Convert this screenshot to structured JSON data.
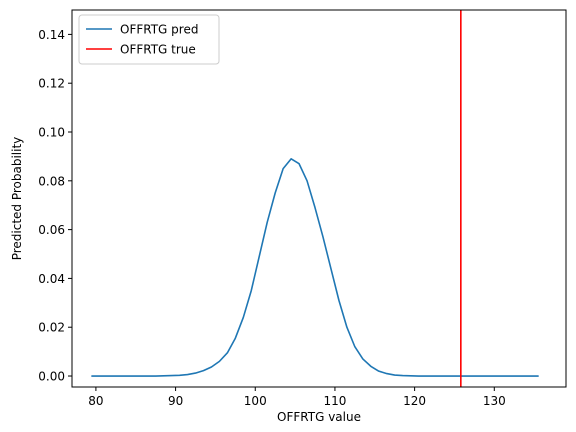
{
  "chart_data": {
    "type": "line",
    "xlabel": "OFFRTG value",
    "ylabel": "Predicted Probability",
    "xlim": [
      77,
      139
    ],
    "ylim": [
      -0.0045,
      0.15
    ],
    "xticks": [
      80,
      90,
      100,
      110,
      120,
      130
    ],
    "yticks": [
      0.0,
      0.02,
      0.04,
      0.06,
      0.08,
      0.1,
      0.12,
      0.14
    ],
    "ytick_labels": [
      "0.00",
      "0.02",
      "0.04",
      "0.06",
      "0.08",
      "0.10",
      "0.12",
      "0.14"
    ],
    "grid": false,
    "legend_position": "upper-left",
    "series": [
      {
        "name": "OFFRTG pred",
        "color": "#1f77b4",
        "x": [
          79.5,
          80.5,
          81.5,
          82.5,
          83.5,
          84.5,
          85.5,
          86.5,
          87.5,
          88.5,
          89.5,
          90.5,
          91.5,
          92.5,
          93.5,
          94.5,
          95.5,
          96.5,
          97.5,
          98.5,
          99.5,
          100.5,
          101.5,
          102.5,
          103.5,
          104.5,
          105.5,
          106.5,
          107.5,
          108.5,
          109.5,
          110.5,
          111.5,
          112.5,
          113.5,
          114.5,
          115.5,
          116.5,
          117.5,
          118.5,
          119.5,
          120.5,
          121.5,
          122.5,
          123.5,
          124.5,
          125.5,
          126.5,
          127.5,
          128.5,
          129.5,
          130.5,
          131.5,
          132.5,
          133.5,
          134.5,
          135.5
        ],
        "y": [
          0.0,
          0.0,
          0.0,
          0.0,
          0.0,
          0.0,
          0.0,
          0.0,
          0.0,
          0.0001,
          0.0002,
          0.0003,
          0.0006,
          0.0012,
          0.0022,
          0.0037,
          0.006,
          0.0095,
          0.0155,
          0.024,
          0.035,
          0.049,
          0.063,
          0.075,
          0.085,
          0.089,
          0.087,
          0.08,
          0.069,
          0.057,
          0.044,
          0.031,
          0.02,
          0.012,
          0.007,
          0.004,
          0.002,
          0.001,
          0.0004,
          0.0002,
          0.0001,
          0.0,
          0.0,
          0.0,
          0.0,
          0.0,
          0.0,
          0.0,
          0.0,
          0.0,
          0.0,
          0.0,
          0.0,
          0.0,
          0.0,
          0.0,
          0.0
        ]
      },
      {
        "name": "OFFRTG true",
        "color": "#ff0000",
        "type": "vline",
        "x": 125.8
      }
    ]
  }
}
